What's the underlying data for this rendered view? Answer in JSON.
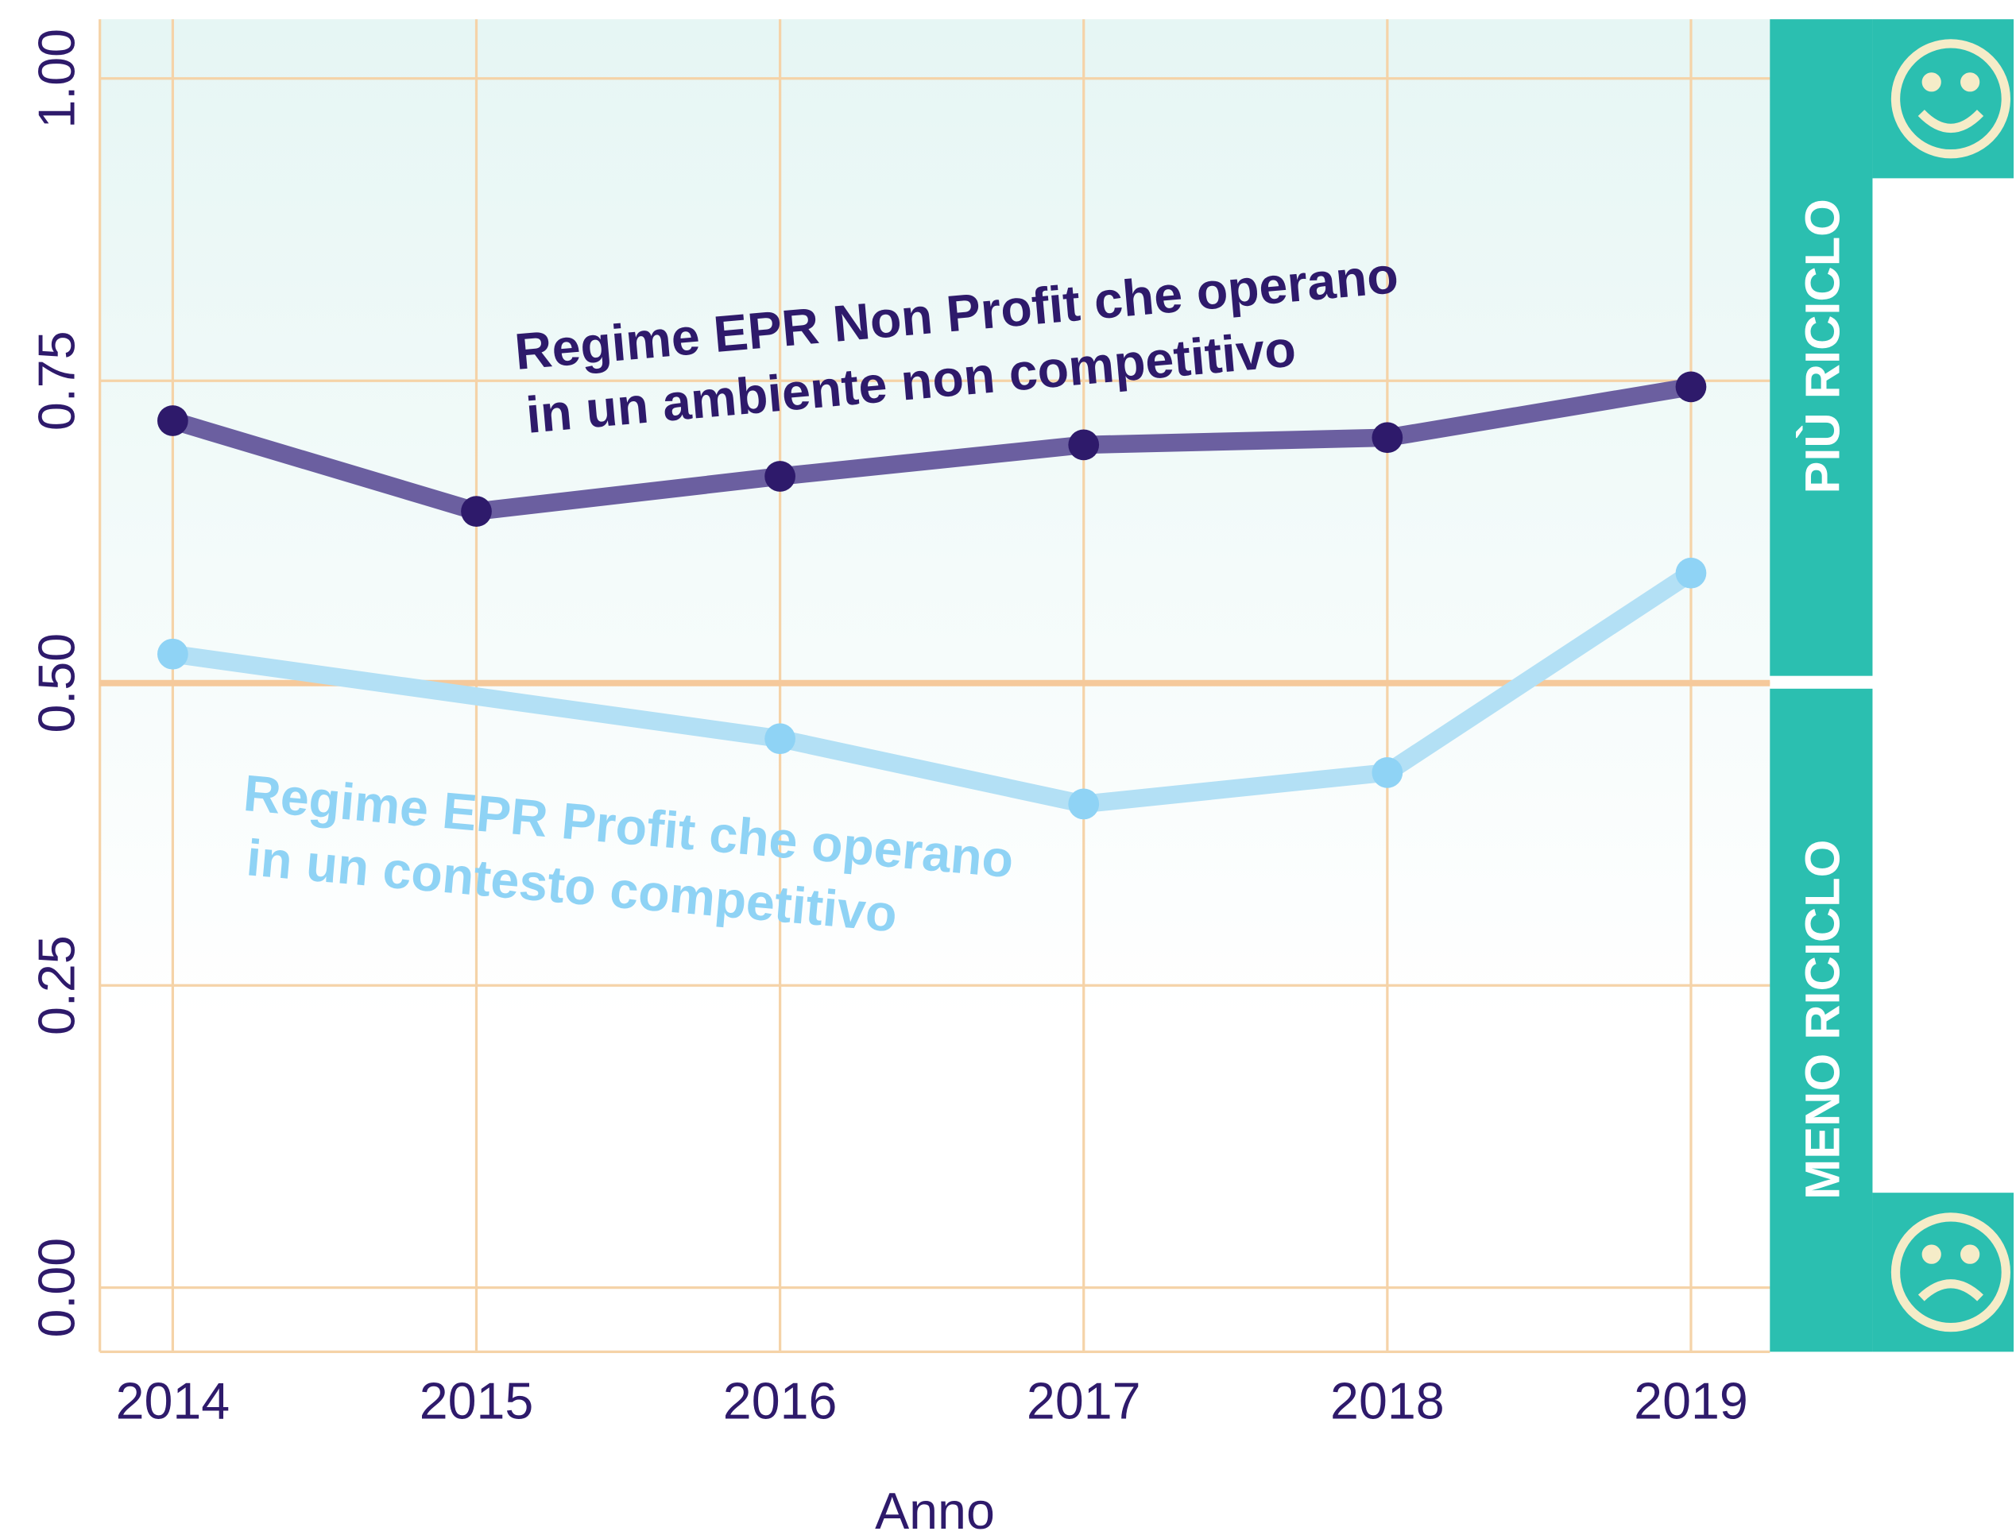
{
  "chart_data": {
    "type": "line",
    "x_label": "Anno",
    "xlim": [
      2013.76,
      2019.26
    ],
    "xticks": [
      2014,
      2015,
      2016,
      2017,
      2018,
      2019
    ],
    "ylim": [
      -0.053,
      1.049
    ],
    "yticks": [
      {
        "value": 0,
        "label": "0.00"
      },
      {
        "value": 0.25,
        "label": "0.25"
      },
      {
        "value": 0.5,
        "label": "0.50"
      },
      {
        "value": 0.75,
        "label": "0.75"
      },
      {
        "value": 1,
        "label": "1.00"
      }
    ],
    "grid": true,
    "threshold": 0.5,
    "threshold_color": "#f5c99b",
    "series": [
      {
        "name": "Regime EPR Non Profit che operano in un ambiente non competitivo",
        "color": "#6b5fa0",
        "marker_color": "#2e1a6b",
        "x": [
          2014,
          2015,
          2016,
          2017,
          2018,
          2019
        ],
        "values": [
          0.717,
          0.642,
          0.671,
          0.697,
          0.703,
          0.745
        ]
      },
      {
        "name": "Regime EPR Profit che operano in un contesto competitivo",
        "color": "#b3e0f5",
        "marker_color": "#8fd3f5",
        "x": [
          2014,
          2016,
          2017,
          2018,
          2019
        ],
        "values": [
          0.524,
          0.454,
          0.4,
          0.426,
          0.591
        ]
      }
    ],
    "annotations": [
      {
        "lines": [
          "Regime EPR Non Profit che operano",
          "in un ambiente non competitivo"
        ],
        "color": "#2e1a6b"
      },
      {
        "lines": [
          "Regime EPR Profit che operano",
          "in un contesto competitivo"
        ],
        "color": "#8fd3f5"
      }
    ],
    "side_labels": [
      "PIÙ RICICLO",
      "MENO RICICLO"
    ]
  }
}
